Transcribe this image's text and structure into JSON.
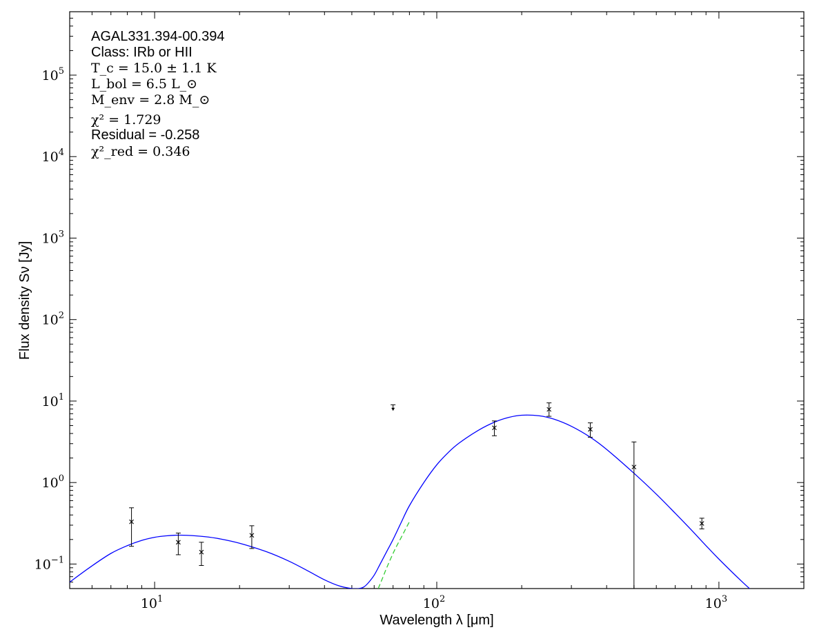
{
  "chart_data": {
    "type": "scatter",
    "xlabel": "Wavelength λ [μm]",
    "ylabel": "Flux density Sν [Jy]",
    "x_scale": "log",
    "y_scale": "log",
    "xlim": [
      5,
      2000
    ],
    "ylim": [
      0.05,
      600000
    ],
    "x_ticks": [
      {
        "value": 10,
        "base": "10",
        "exp": "1"
      },
      {
        "value": 100,
        "base": "10",
        "exp": "2"
      },
      {
        "value": 1000,
        "base": "10",
        "exp": "3"
      }
    ],
    "y_ticks": [
      {
        "value": 0.1,
        "base": "10",
        "exp": "−1"
      },
      {
        "value": 1,
        "base": "10",
        "exp": "0"
      },
      {
        "value": 10,
        "base": "10",
        "exp": "1"
      },
      {
        "value": 100,
        "base": "10",
        "exp": "2"
      },
      {
        "value": 1000,
        "base": "10",
        "exp": "3"
      },
      {
        "value": 10000,
        "base": "10",
        "exp": "4"
      },
      {
        "value": 100000,
        "base": "10",
        "exp": "5"
      }
    ],
    "grid": false,
    "annotations": {
      "source": "AGAL331.394-00.394",
      "class_line": "Class: IRb or HII",
      "tc": "T_c = 15.0 ± 1.1 K",
      "lbol": "L_bol = 6.5 L_⊙",
      "menv": "M_env = 2.8 M_⊙",
      "chi2": "χ² = 1.729",
      "residual": "Residual = -0.258",
      "chi2_red": "χ²_red = 0.346"
    },
    "series": [
      {
        "kind": "points",
        "marker": "x",
        "color": "#000000",
        "points": [
          {
            "x": 8.28,
            "y": 0.33,
            "ylo": 0.165,
            "yhi": 0.49
          },
          {
            "x": 12.13,
            "y": 0.185,
            "ylo": 0.13,
            "yhi": 0.24
          },
          {
            "x": 14.65,
            "y": 0.14,
            "ylo": 0.096,
            "yhi": 0.185
          },
          {
            "x": 22.1,
            "y": 0.225,
            "ylo": 0.155,
            "yhi": 0.295
          },
          {
            "x": 160,
            "y": 4.7,
            "ylo": 3.75,
            "yhi": 5.7
          },
          {
            "x": 250,
            "y": 7.9,
            "ylo": 6.5,
            "yhi": 9.5
          },
          {
            "x": 350,
            "y": 4.5,
            "ylo": 3.6,
            "yhi": 5.4
          },
          {
            "x": 500,
            "y": 1.55,
            "ylo": 0.05,
            "yhi": 3.15
          },
          {
            "x": 870,
            "y": 0.315,
            "ylo": 0.27,
            "yhi": 0.365
          }
        ]
      },
      {
        "kind": "upper_limit",
        "marker": "v",
        "color": "#000000",
        "points": [
          {
            "x": 70,
            "y": 7.8,
            "yhi": 9.0
          }
        ]
      },
      {
        "kind": "line",
        "style": "solid",
        "color": "#0000ff",
        "x": [
          5,
          6,
          7,
          8,
          9,
          10,
          11,
          12,
          13,
          15,
          17,
          20,
          25,
          30,
          35,
          40,
          45,
          50,
          53,
          55,
          57,
          60,
          63,
          67,
          70,
          75,
          80,
          90,
          100,
          110,
          120,
          140,
          160,
          180,
          200,
          230,
          260,
          300,
          350,
          400,
          500,
          600,
          700,
          800,
          900,
          1000,
          1200,
          1400,
          1600
        ],
        "y": [
          0.06,
          0.095,
          0.135,
          0.168,
          0.195,
          0.213,
          0.222,
          0.226,
          0.225,
          0.217,
          0.204,
          0.18,
          0.141,
          0.108,
          0.082,
          0.064,
          0.054,
          0.05,
          0.05,
          0.052,
          0.058,
          0.073,
          0.1,
          0.15,
          0.2,
          0.33,
          0.52,
          1.0,
          1.65,
          2.35,
          3.05,
          4.35,
          5.5,
          6.3,
          6.7,
          6.6,
          6.0,
          4.9,
          3.6,
          2.55,
          1.3,
          0.72,
          0.42,
          0.26,
          0.168,
          0.115,
          0.062,
          0.038,
          0.024
        ]
      },
      {
        "kind": "line",
        "style": "dashed",
        "color": "#33cc33",
        "x": [
          62,
          64,
          66,
          68,
          70,
          72,
          75,
          78,
          80
        ],
        "y": [
          0.05,
          0.065,
          0.085,
          0.108,
          0.135,
          0.165,
          0.215,
          0.28,
          0.33
        ]
      }
    ]
  }
}
